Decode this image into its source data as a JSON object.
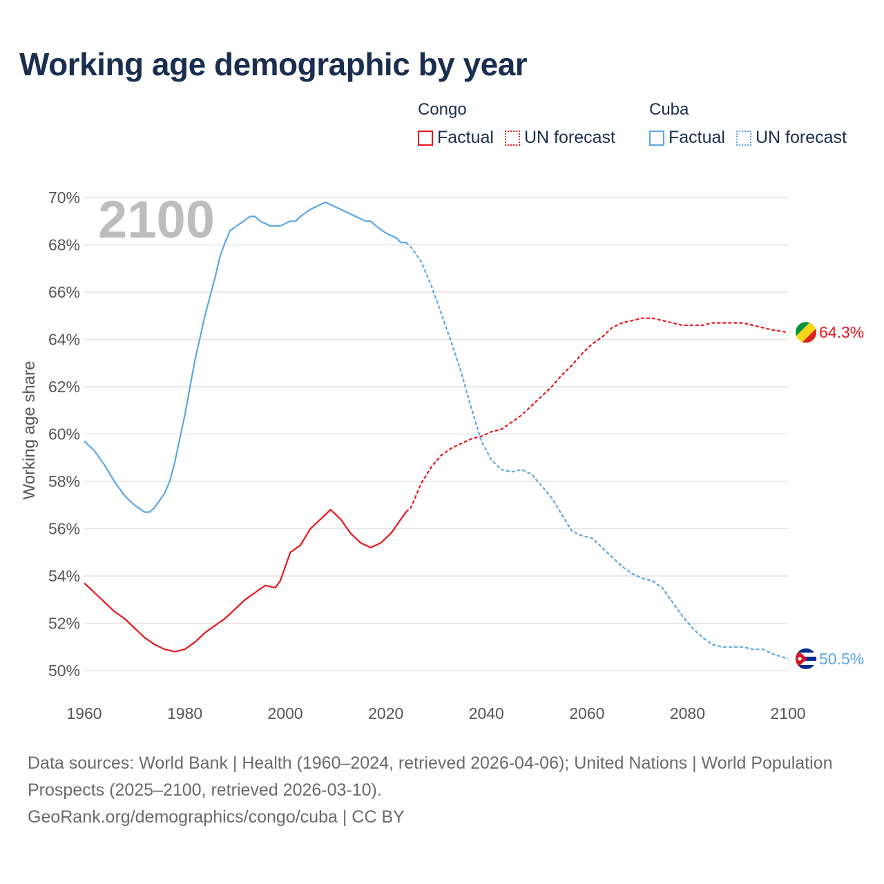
{
  "title": "Working age demographic by year",
  "year_watermark": "2100",
  "legend": [
    {
      "group": "Congo",
      "factual_label": "Factual",
      "forecast_label": "UN forecast",
      "color": "#e8141c"
    },
    {
      "group": "Cuba",
      "factual_label": "Factual",
      "forecast_label": "UN forecast",
      "color": "#5aa6e6"
    }
  ],
  "footer": {
    "sources": "Data sources: World Bank | Health (1960–2024, retrieved 2026-04-06); United Nations | World Population Prospects (2025–2100, retrieved 2026-03-10).",
    "credit": "GeoRank.org/demographics/congo/cuba | CC BY"
  },
  "chart_data": {
    "type": "line",
    "title": "Working age demographic by year",
    "xlabel": "",
    "ylabel": "Working age share",
    "xlim": [
      1960,
      2100
    ],
    "ylim": [
      49.5,
      70
    ],
    "x_ticks": [
      1960,
      1980,
      2000,
      2020,
      2040,
      2060,
      2080,
      2100
    ],
    "y_ticks": [
      50,
      52,
      54,
      56,
      58,
      60,
      62,
      64,
      66,
      68,
      70
    ],
    "y_tick_labels": [
      "50%",
      "52%",
      "54%",
      "56%",
      "58%",
      "60%",
      "62%",
      "64%",
      "66%",
      "68%",
      "70%"
    ],
    "grid": true,
    "factual_end_year": 2024,
    "series": [
      {
        "name": "Congo",
        "color": "#e8141c",
        "end_label": "64.3%",
        "flag": "congo-flag",
        "points": [
          [
            1960,
            53.7
          ],
          [
            1962,
            53.3
          ],
          [
            1964,
            52.9
          ],
          [
            1966,
            52.5
          ],
          [
            1968,
            52.2
          ],
          [
            1970,
            51.8
          ],
          [
            1972,
            51.4
          ],
          [
            1974,
            51.1
          ],
          [
            1976,
            50.9
          ],
          [
            1978,
            50.8
          ],
          [
            1980,
            50.9
          ],
          [
            1982,
            51.2
          ],
          [
            1984,
            51.6
          ],
          [
            1986,
            51.9
          ],
          [
            1988,
            52.2
          ],
          [
            1990,
            52.6
          ],
          [
            1992,
            53.0
          ],
          [
            1994,
            53.3
          ],
          [
            1996,
            53.6
          ],
          [
            1998,
            53.5
          ],
          [
            1999,
            53.8
          ],
          [
            2001,
            55.0
          ],
          [
            2003,
            55.3
          ],
          [
            2005,
            56.0
          ],
          [
            2007,
            56.4
          ],
          [
            2009,
            56.8
          ],
          [
            2011,
            56.4
          ],
          [
            2013,
            55.8
          ],
          [
            2015,
            55.4
          ],
          [
            2017,
            55.2
          ],
          [
            2019,
            55.4
          ],
          [
            2021,
            55.8
          ],
          [
            2023,
            56.4
          ],
          [
            2024,
            56.7
          ],
          [
            2025,
            56.9
          ],
          [
            2027,
            57.9
          ],
          [
            2029,
            58.6
          ],
          [
            2031,
            59.1
          ],
          [
            2033,
            59.4
          ],
          [
            2035,
            59.6
          ],
          [
            2037,
            59.8
          ],
          [
            2039,
            59.9
          ],
          [
            2041,
            60.1
          ],
          [
            2043,
            60.2
          ],
          [
            2045,
            60.5
          ],
          [
            2047,
            60.8
          ],
          [
            2049,
            61.2
          ],
          [
            2051,
            61.6
          ],
          [
            2053,
            62.0
          ],
          [
            2055,
            62.5
          ],
          [
            2057,
            62.9
          ],
          [
            2059,
            63.4
          ],
          [
            2061,
            63.8
          ],
          [
            2063,
            64.1
          ],
          [
            2065,
            64.5
          ],
          [
            2067,
            64.7
          ],
          [
            2069,
            64.8
          ],
          [
            2071,
            64.9
          ],
          [
            2073,
            64.9
          ],
          [
            2075,
            64.8
          ],
          [
            2077,
            64.7
          ],
          [
            2079,
            64.6
          ],
          [
            2081,
            64.6
          ],
          [
            2083,
            64.6
          ],
          [
            2085,
            64.7
          ],
          [
            2087,
            64.7
          ],
          [
            2089,
            64.7
          ],
          [
            2091,
            64.7
          ],
          [
            2093,
            64.6
          ],
          [
            2095,
            64.5
          ],
          [
            2097,
            64.4
          ],
          [
            2100,
            64.3
          ]
        ]
      },
      {
        "name": "Cuba",
        "color": "#5aa6e6",
        "end_label": "50.5%",
        "flag": "cuba-flag",
        "points": [
          [
            1960,
            59.7
          ],
          [
            1962,
            59.3
          ],
          [
            1964,
            58.7
          ],
          [
            1966,
            58.0
          ],
          [
            1968,
            57.4
          ],
          [
            1970,
            57.0
          ],
          [
            1972,
            56.7
          ],
          [
            1973,
            56.7
          ],
          [
            1974,
            56.9
          ],
          [
            1976,
            57.5
          ],
          [
            1977,
            58.0
          ],
          [
            1978,
            58.8
          ],
          [
            1980,
            60.8
          ],
          [
            1982,
            63.1
          ],
          [
            1984,
            65.0
          ],
          [
            1986,
            66.6
          ],
          [
            1987,
            67.5
          ],
          [
            1988,
            68.1
          ],
          [
            1989,
            68.6
          ],
          [
            1991,
            68.9
          ],
          [
            1993,
            69.2
          ],
          [
            1994,
            69.2
          ],
          [
            1995,
            69.0
          ],
          [
            1997,
            68.8
          ],
          [
            1999,
            68.8
          ],
          [
            2001,
            69.0
          ],
          [
            2002,
            69.0
          ],
          [
            2003,
            69.2
          ],
          [
            2005,
            69.5
          ],
          [
            2007,
            69.7
          ],
          [
            2008,
            69.8
          ],
          [
            2010,
            69.6
          ],
          [
            2012,
            69.4
          ],
          [
            2014,
            69.2
          ],
          [
            2016,
            69.0
          ],
          [
            2017,
            69.0
          ],
          [
            2018,
            68.8
          ],
          [
            2020,
            68.5
          ],
          [
            2022,
            68.3
          ],
          [
            2023,
            68.1
          ],
          [
            2024,
            68.1
          ],
          [
            2025,
            67.9
          ],
          [
            2027,
            67.3
          ],
          [
            2029,
            66.3
          ],
          [
            2031,
            65.1
          ],
          [
            2033,
            63.9
          ],
          [
            2035,
            62.6
          ],
          [
            2037,
            61.1
          ],
          [
            2039,
            59.7
          ],
          [
            2041,
            58.9
          ],
          [
            2043,
            58.5
          ],
          [
            2045,
            58.4
          ],
          [
            2047,
            58.5
          ],
          [
            2049,
            58.3
          ],
          [
            2051,
            57.8
          ],
          [
            2053,
            57.3
          ],
          [
            2055,
            56.6
          ],
          [
            2057,
            55.9
          ],
          [
            2059,
            55.7
          ],
          [
            2061,
            55.6
          ],
          [
            2063,
            55.2
          ],
          [
            2065,
            54.8
          ],
          [
            2067,
            54.4
          ],
          [
            2069,
            54.1
          ],
          [
            2071,
            53.9
          ],
          [
            2073,
            53.8
          ],
          [
            2075,
            53.5
          ],
          [
            2077,
            52.9
          ],
          [
            2079,
            52.3
          ],
          [
            2081,
            51.8
          ],
          [
            2083,
            51.4
          ],
          [
            2085,
            51.1
          ],
          [
            2087,
            51.0
          ],
          [
            2089,
            51.0
          ],
          [
            2091,
            51.0
          ],
          [
            2093,
            50.9
          ],
          [
            2095,
            50.9
          ],
          [
            2097,
            50.7
          ],
          [
            2100,
            50.5
          ]
        ]
      }
    ]
  }
}
